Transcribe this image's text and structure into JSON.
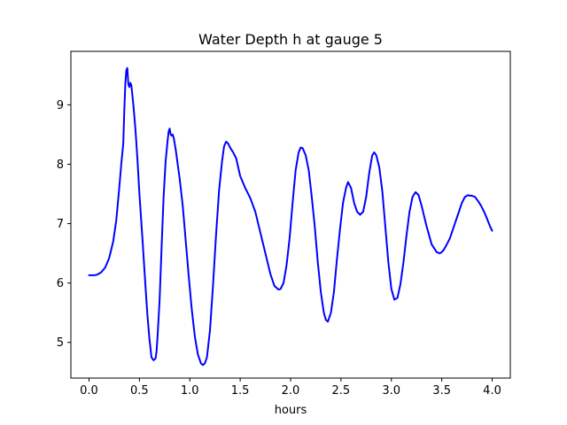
{
  "chart_data": {
    "type": "line",
    "title": "Water Depth h at gauge 5",
    "xlabel": "hours",
    "ylabel": "",
    "xlim": [
      -0.18,
      4.18
    ],
    "ylim": [
      4.4,
      9.9
    ],
    "xticks": [
      {
        "value": 0.0,
        "label": "0.0"
      },
      {
        "value": 0.5,
        "label": "0.5"
      },
      {
        "value": 1.0,
        "label": "1.0"
      },
      {
        "value": 1.5,
        "label": "1.5"
      },
      {
        "value": 2.0,
        "label": "2.0"
      },
      {
        "value": 2.5,
        "label": "2.5"
      },
      {
        "value": 3.0,
        "label": "3.0"
      },
      {
        "value": 3.5,
        "label": "3.5"
      },
      {
        "value": 4.0,
        "label": "4.0"
      }
    ],
    "yticks": [
      {
        "value": 5,
        "label": "5"
      },
      {
        "value": 6,
        "label": "6"
      },
      {
        "value": 7,
        "label": "7"
      },
      {
        "value": 8,
        "label": "8"
      },
      {
        "value": 9,
        "label": "9"
      }
    ],
    "grid": false,
    "series": [
      {
        "color": "#0000ff",
        "x": [
          0.0,
          0.05,
          0.08,
          0.12,
          0.16,
          0.2,
          0.24,
          0.27,
          0.3,
          0.32,
          0.34,
          0.35,
          0.36,
          0.37,
          0.38,
          0.39,
          0.4,
          0.41,
          0.42,
          0.44,
          0.46,
          0.48,
          0.5,
          0.53,
          0.56,
          0.58,
          0.6,
          0.62,
          0.64,
          0.66,
          0.67,
          0.68,
          0.7,
          0.72,
          0.74,
          0.76,
          0.78,
          0.79,
          0.8,
          0.81,
          0.82,
          0.83,
          0.84,
          0.86,
          0.88,
          0.9,
          0.93,
          0.96,
          0.99,
          1.02,
          1.05,
          1.08,
          1.11,
          1.13,
          1.15,
          1.17,
          1.2,
          1.23,
          1.26,
          1.29,
          1.32,
          1.34,
          1.36,
          1.38,
          1.4,
          1.43,
          1.46,
          1.5,
          1.55,
          1.6,
          1.65,
          1.7,
          1.75,
          1.8,
          1.84,
          1.88,
          1.9,
          1.93,
          1.96,
          1.99,
          2.02,
          2.05,
          2.08,
          2.1,
          2.12,
          2.15,
          2.18,
          2.21,
          2.24,
          2.27,
          2.3,
          2.33,
          2.35,
          2.37,
          2.4,
          2.43,
          2.46,
          2.49,
          2.52,
          2.55,
          2.57,
          2.6,
          2.63,
          2.66,
          2.69,
          2.72,
          2.75,
          2.78,
          2.81,
          2.83,
          2.85,
          2.88,
          2.91,
          2.94,
          2.97,
          3.0,
          3.03,
          3.06,
          3.09,
          3.12,
          3.15,
          3.18,
          3.21,
          3.24,
          3.27,
          3.3,
          3.35,
          3.4,
          3.45,
          3.48,
          3.5,
          3.52,
          3.55,
          3.58,
          3.62,
          3.66,
          3.7,
          3.73,
          3.76,
          3.78,
          3.8,
          3.83,
          3.86,
          3.89,
          3.92,
          3.95,
          3.98,
          4.0
        ],
        "y": [
          6.13,
          6.13,
          6.14,
          6.18,
          6.26,
          6.42,
          6.7,
          7.05,
          7.6,
          8.0,
          8.35,
          8.9,
          9.35,
          9.58,
          9.62,
          9.35,
          9.3,
          9.37,
          9.33,
          9.0,
          8.6,
          8.1,
          7.5,
          6.75,
          5.95,
          5.45,
          5.05,
          4.75,
          4.7,
          4.73,
          4.85,
          5.1,
          5.7,
          6.6,
          7.45,
          8.05,
          8.4,
          8.55,
          8.6,
          8.5,
          8.48,
          8.5,
          8.45,
          8.25,
          8.0,
          7.75,
          7.3,
          6.7,
          6.1,
          5.55,
          5.1,
          4.8,
          4.65,
          4.62,
          4.65,
          4.75,
          5.2,
          5.95,
          6.8,
          7.55,
          8.05,
          8.3,
          8.38,
          8.35,
          8.28,
          8.2,
          8.1,
          7.8,
          7.6,
          7.43,
          7.2,
          6.85,
          6.5,
          6.15,
          5.95,
          5.89,
          5.9,
          6.0,
          6.3,
          6.75,
          7.35,
          7.9,
          8.2,
          8.28,
          8.27,
          8.15,
          7.9,
          7.45,
          6.95,
          6.35,
          5.85,
          5.5,
          5.38,
          5.35,
          5.5,
          5.85,
          6.4,
          6.9,
          7.35,
          7.6,
          7.7,
          7.6,
          7.35,
          7.2,
          7.15,
          7.2,
          7.45,
          7.85,
          8.15,
          8.2,
          8.15,
          7.95,
          7.55,
          6.95,
          6.35,
          5.9,
          5.72,
          5.75,
          5.98,
          6.35,
          6.8,
          7.2,
          7.45,
          7.53,
          7.48,
          7.3,
          6.95,
          6.65,
          6.52,
          6.5,
          6.52,
          6.56,
          6.65,
          6.75,
          6.95,
          7.15,
          7.35,
          7.45,
          7.48,
          7.47,
          7.47,
          7.45,
          7.38,
          7.3,
          7.2,
          7.08,
          6.95,
          6.88
        ]
      }
    ]
  }
}
